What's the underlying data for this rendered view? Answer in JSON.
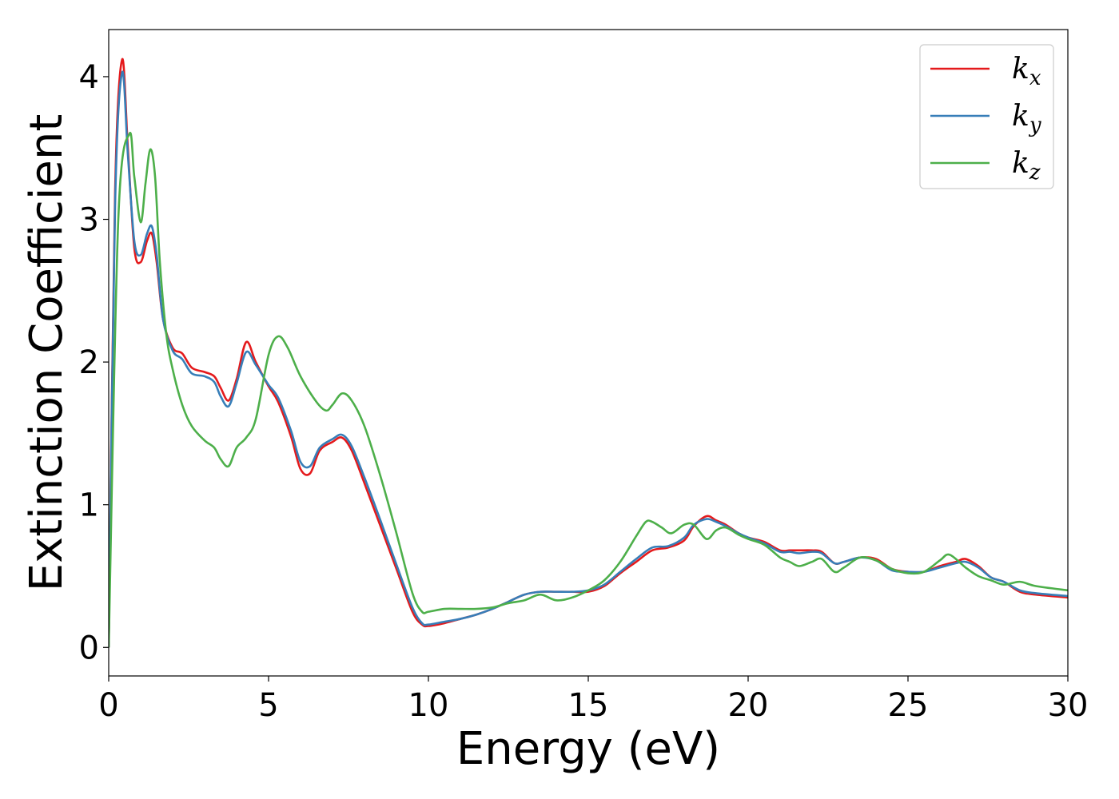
{
  "chart_data": {
    "type": "line",
    "xlabel": "Energy (eV)",
    "ylabel": "Extinction Coefficient",
    "xlim": [
      0,
      30
    ],
    "ylim": [
      -0.2,
      4.33
    ],
    "xticks": [
      0,
      5,
      10,
      15,
      20,
      25,
      30
    ],
    "yticks": [
      0,
      1,
      2,
      3,
      4
    ],
    "grid": false,
    "legend_position": "top-right",
    "series": [
      {
        "name": "k_x",
        "label_main": "k",
        "label_sub": "x",
        "color": "#e41a1c",
        "x": [
          0,
          0.2,
          0.42,
          0.6,
          0.8,
          1.0,
          1.2,
          1.35,
          1.5,
          1.7,
          2.0,
          2.3,
          2.6,
          3.0,
          3.3,
          3.5,
          3.75,
          4.0,
          4.3,
          4.6,
          5.0,
          5.3,
          5.7,
          6.0,
          6.3,
          6.6,
          7.0,
          7.3,
          7.6,
          8.0,
          8.5,
          9.0,
          9.5,
          9.8,
          10.0,
          10.5,
          11.0,
          11.5,
          12.0,
          12.5,
          13.0,
          13.5,
          14.0,
          14.5,
          15.0,
          15.5,
          16.0,
          16.5,
          17.0,
          17.5,
          18.0,
          18.3,
          18.7,
          19.0,
          19.3,
          19.7,
          20.0,
          20.5,
          21.0,
          21.3,
          21.6,
          22.0,
          22.3,
          22.7,
          23.0,
          23.5,
          24.0,
          24.5,
          25.0,
          25.5,
          26.0,
          26.5,
          26.8,
          27.2,
          27.6,
          28.0,
          28.5,
          29.0,
          30.0
        ],
        "y": [
          0,
          3.2,
          4.12,
          3.5,
          2.8,
          2.7,
          2.85,
          2.9,
          2.7,
          2.3,
          2.1,
          2.06,
          1.96,
          1.93,
          1.9,
          1.82,
          1.73,
          1.88,
          2.14,
          2.0,
          1.83,
          1.72,
          1.48,
          1.25,
          1.22,
          1.38,
          1.44,
          1.47,
          1.38,
          1.15,
          0.85,
          0.55,
          0.25,
          0.16,
          0.15,
          0.17,
          0.2,
          0.23,
          0.27,
          0.32,
          0.37,
          0.39,
          0.39,
          0.39,
          0.39,
          0.43,
          0.52,
          0.6,
          0.68,
          0.7,
          0.75,
          0.85,
          0.92,
          0.89,
          0.86,
          0.8,
          0.77,
          0.74,
          0.68,
          0.68,
          0.68,
          0.68,
          0.67,
          0.59,
          0.6,
          0.63,
          0.62,
          0.55,
          0.53,
          0.53,
          0.57,
          0.6,
          0.62,
          0.57,
          0.49,
          0.46,
          0.39,
          0.37,
          0.35
        ]
      },
      {
        "name": "k_y",
        "label_main": "k",
        "label_sub": "y",
        "color": "#377eb8",
        "x": [
          0,
          0.2,
          0.42,
          0.6,
          0.8,
          1.0,
          1.2,
          1.35,
          1.5,
          1.7,
          2.0,
          2.3,
          2.6,
          3.0,
          3.3,
          3.5,
          3.75,
          4.0,
          4.3,
          4.6,
          5.0,
          5.3,
          5.7,
          6.0,
          6.3,
          6.6,
          7.0,
          7.3,
          7.6,
          8.0,
          8.5,
          9.0,
          9.5,
          9.8,
          10.0,
          10.5,
          11.0,
          11.5,
          12.0,
          12.5,
          13.0,
          13.5,
          14.0,
          14.5,
          15.0,
          15.5,
          16.0,
          16.5,
          17.0,
          17.5,
          18.0,
          18.3,
          18.7,
          19.0,
          19.3,
          19.7,
          20.0,
          20.5,
          21.0,
          21.3,
          21.6,
          22.0,
          22.3,
          22.7,
          23.0,
          23.5,
          24.0,
          24.5,
          25.0,
          25.5,
          26.0,
          26.5,
          26.8,
          27.2,
          27.6,
          28.0,
          28.5,
          29.0,
          30.0
        ],
        "y": [
          0,
          3.1,
          4.03,
          3.45,
          2.85,
          2.75,
          2.9,
          2.95,
          2.75,
          2.3,
          2.08,
          2.02,
          1.92,
          1.9,
          1.86,
          1.76,
          1.69,
          1.85,
          2.07,
          1.98,
          1.84,
          1.75,
          1.52,
          1.3,
          1.27,
          1.4,
          1.46,
          1.49,
          1.41,
          1.19,
          0.89,
          0.58,
          0.28,
          0.17,
          0.16,
          0.18,
          0.2,
          0.23,
          0.27,
          0.32,
          0.37,
          0.39,
          0.39,
          0.39,
          0.4,
          0.44,
          0.53,
          0.62,
          0.7,
          0.71,
          0.77,
          0.86,
          0.9,
          0.88,
          0.85,
          0.8,
          0.77,
          0.73,
          0.67,
          0.67,
          0.66,
          0.67,
          0.66,
          0.59,
          0.6,
          0.63,
          0.61,
          0.54,
          0.53,
          0.53,
          0.56,
          0.59,
          0.6,
          0.56,
          0.49,
          0.46,
          0.4,
          0.38,
          0.36
        ]
      },
      {
        "name": "k_z",
        "label_main": "k",
        "label_sub": "z",
        "color": "#4daf4a",
        "x": [
          0,
          0.3,
          0.65,
          0.8,
          1.0,
          1.15,
          1.3,
          1.45,
          1.6,
          1.8,
          2.0,
          2.3,
          2.6,
          3.0,
          3.3,
          3.5,
          3.75,
          4.0,
          4.3,
          4.6,
          5.0,
          5.3,
          5.6,
          6.0,
          6.5,
          6.8,
          7.0,
          7.3,
          7.6,
          8.0,
          8.5,
          9.0,
          9.5,
          9.8,
          10.0,
          10.5,
          11.0,
          11.5,
          12.0,
          12.5,
          13.0,
          13.5,
          14.0,
          14.5,
          15.0,
          15.5,
          16.0,
          16.5,
          16.8,
          17.0,
          17.3,
          17.6,
          18.0,
          18.3,
          18.7,
          19.0,
          19.3,
          19.7,
          20.0,
          20.5,
          21.0,
          21.3,
          21.6,
          22.0,
          22.3,
          22.7,
          23.0,
          23.5,
          24.0,
          24.5,
          25.0,
          25.5,
          26.0,
          26.3,
          26.8,
          27.2,
          27.6,
          28.0,
          28.5,
          29.0,
          30.0
        ],
        "y": [
          0,
          3.0,
          3.6,
          3.3,
          2.98,
          3.25,
          3.49,
          3.3,
          2.7,
          2.2,
          1.95,
          1.7,
          1.55,
          1.45,
          1.4,
          1.32,
          1.27,
          1.4,
          1.47,
          1.6,
          2.05,
          2.18,
          2.1,
          1.9,
          1.72,
          1.66,
          1.7,
          1.78,
          1.73,
          1.55,
          1.2,
          0.8,
          0.38,
          0.25,
          0.25,
          0.27,
          0.27,
          0.27,
          0.28,
          0.31,
          0.33,
          0.37,
          0.33,
          0.35,
          0.4,
          0.47,
          0.6,
          0.78,
          0.88,
          0.88,
          0.84,
          0.8,
          0.86,
          0.86,
          0.76,
          0.82,
          0.84,
          0.79,
          0.76,
          0.72,
          0.63,
          0.6,
          0.57,
          0.6,
          0.62,
          0.53,
          0.56,
          0.63,
          0.61,
          0.55,
          0.52,
          0.53,
          0.61,
          0.65,
          0.56,
          0.5,
          0.47,
          0.44,
          0.46,
          0.43,
          0.4
        ]
      }
    ]
  }
}
